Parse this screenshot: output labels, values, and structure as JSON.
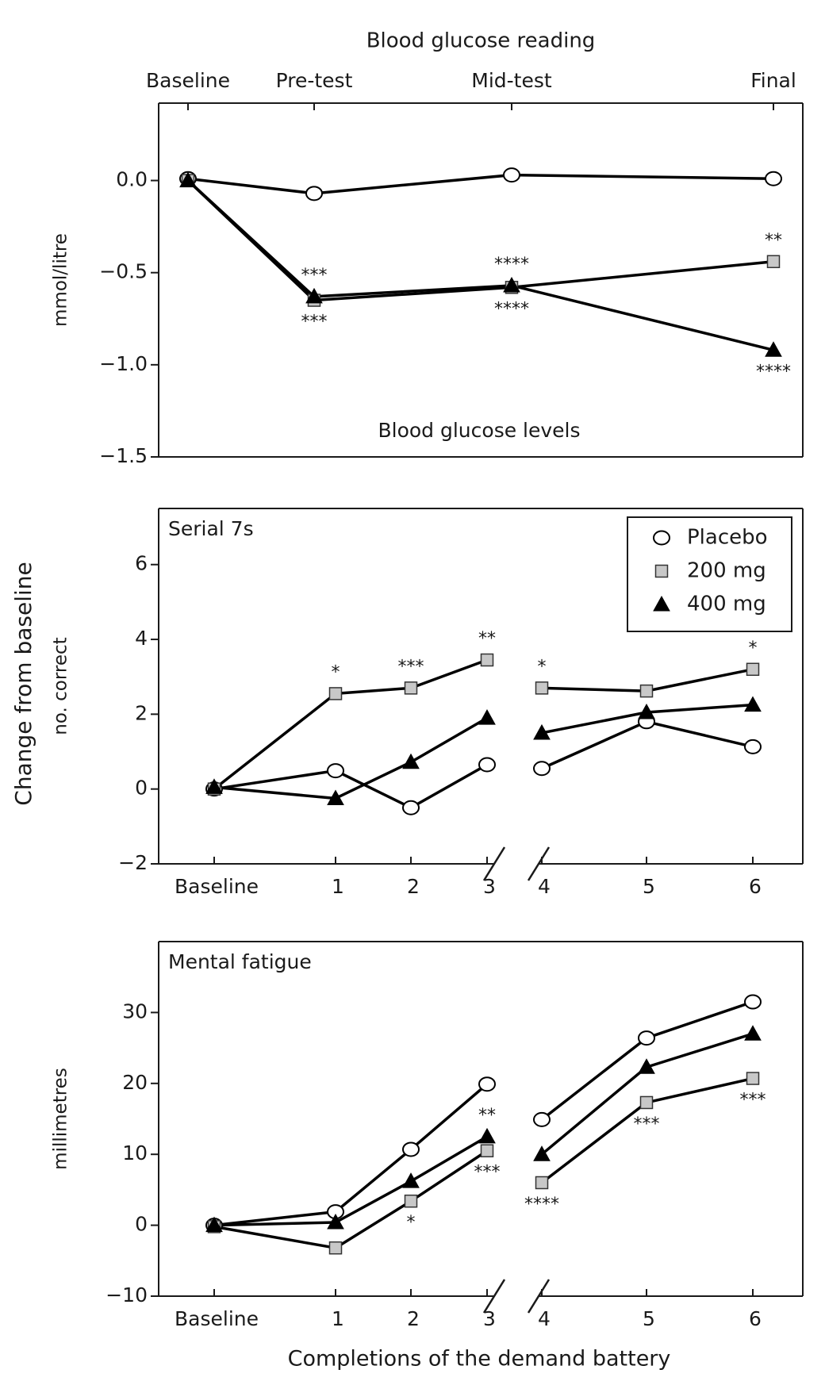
{
  "figure": {
    "ylabel": "Change from baseline"
  },
  "chart_data": [
    {
      "type": "line",
      "x_axis_title": "Blood glucose reading",
      "title": "Blood glucose levels",
      "ylabel": "mmol/litre",
      "categories": [
        "Baseline",
        "Pre-test",
        "Mid-test",
        "Final"
      ],
      "ylim": [
        -1.5,
        0.42
      ],
      "yticks": [
        {
          "value": 0,
          "label": "0.0"
        },
        {
          "value": -0.5,
          "label": "−0.5"
        },
        {
          "value": -1.0,
          "label": "−1.0"
        },
        {
          "value": -1.5,
          "label": "−1.5"
        }
      ],
      "line_color": "#000000",
      "series": [
        {
          "marker": "circle",
          "color": "#ffffff",
          "values": [
            0.01,
            -0.07,
            0.03,
            0.01
          ],
          "annotations": [
            null,
            null,
            null,
            null
          ]
        },
        {
          "marker": "square",
          "color": "#c8c8c8",
          "values": [
            0.0,
            -0.65,
            -0.58,
            -0.44
          ],
          "annotations": [
            null,
            "***",
            "****",
            "**"
          ]
        },
        {
          "marker": "triangle",
          "color": "#000000",
          "values": [
            0.0,
            -0.63,
            -0.57,
            -0.92
          ],
          "annotations": [
            null,
            "***",
            "****",
            "****"
          ]
        }
      ]
    },
    {
      "type": "line",
      "title": "Serial 7s",
      "ylabel": "no. correct",
      "legend": "upper right",
      "categories": [
        "Baseline",
        "1",
        "2",
        "3",
        null,
        "4",
        "5",
        "6"
      ],
      "ylim": [
        -2,
        7.5
      ],
      "yticks": [
        {
          "value": -2,
          "label": "−2"
        },
        0,
        2,
        4,
        6
      ],
      "line_color": "#000000",
      "series": [
        {
          "name": "Placebo",
          "marker": "circle",
          "color": "#ffffff",
          "values": [
            0.0,
            0.49,
            -0.5,
            0.65,
            null,
            0.55,
            1.8,
            1.13
          ],
          "annotations": [
            null,
            null,
            null,
            null,
            null,
            null,
            null,
            null
          ]
        },
        {
          "name": "200 mg",
          "marker": "square",
          "color": "#c8c8c8",
          "values": [
            0.0,
            2.55,
            2.7,
            3.45,
            null,
            2.7,
            2.62,
            3.2
          ],
          "annotations": [
            null,
            "*",
            "***",
            "**",
            null,
            "*",
            null,
            "*"
          ]
        },
        {
          "name": "400 mg",
          "marker": "triangle",
          "color": "#000000",
          "values": [
            0.05,
            -0.25,
            0.72,
            1.9,
            null,
            1.5,
            2.05,
            2.25
          ],
          "annotations": [
            null,
            null,
            null,
            null,
            null,
            null,
            null,
            null
          ]
        }
      ]
    },
    {
      "type": "line",
      "title": "Mental fatigue",
      "ylabel": "millimetres",
      "xlabel": "Completions of the demand battery",
      "categories": [
        "Baseline",
        "1",
        "2",
        "3",
        null,
        "4",
        "5",
        "6"
      ],
      "ylim": [
        -10,
        40
      ],
      "yticks": [
        {
          "value": -10,
          "label": "−10"
        },
        0,
        10,
        20,
        30
      ],
      "line_color": "#000000",
      "series": [
        {
          "marker": "circle",
          "color": "#ffffff",
          "values": [
            0.0,
            1.9,
            10.7,
            19.9,
            null,
            14.9,
            26.4,
            31.5
          ],
          "annotations": [
            null,
            null,
            null,
            null,
            null,
            null,
            null,
            null
          ]
        },
        {
          "marker": "square",
          "color": "#c8c8c8",
          "values": [
            -0.2,
            -3.2,
            3.4,
            10.5,
            null,
            6.0,
            17.3,
            20.7
          ],
          "annotations": [
            null,
            null,
            "*",
            "***",
            null,
            "****",
            "***",
            "***"
          ]
        },
        {
          "marker": "triangle",
          "color": "#000000",
          "values": [
            0.0,
            0.4,
            6.2,
            12.5,
            null,
            10.0,
            22.3,
            27.0
          ],
          "annotations": [
            null,
            null,
            null,
            "**",
            null,
            null,
            null,
            null
          ]
        }
      ]
    }
  ]
}
